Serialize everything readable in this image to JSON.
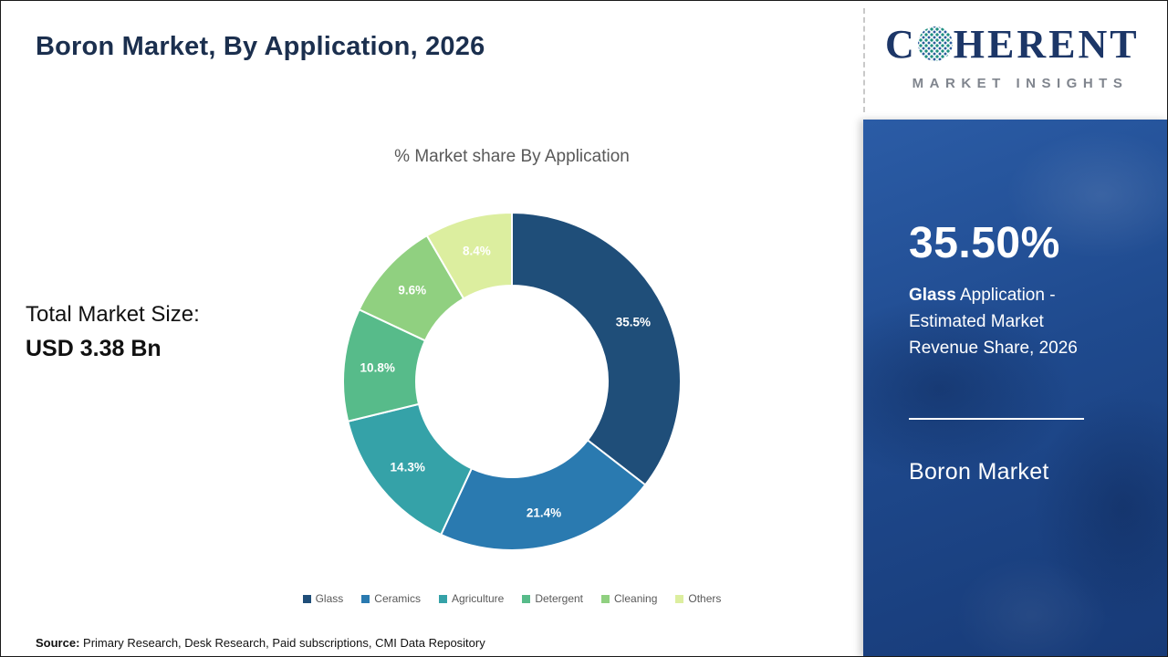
{
  "slide": {
    "title": "Boron Market, By Application, 2026",
    "total_label": "Total Market Size:",
    "total_value": "USD 3.38 Bn",
    "source_label": "Source:",
    "source_text": " Primary Research, Desk Research, Paid subscriptions, CMI Data Repository"
  },
  "logo": {
    "prefix": "C",
    "suffix": "HERENT",
    "subtitle": "MARKET INSIGHTS"
  },
  "chart_data": {
    "type": "pie",
    "donut": true,
    "title": "% Market share By Application",
    "categories": [
      "Glass",
      "Ceramics",
      "Agriculture",
      "Detergent",
      "Cleaning",
      "Others"
    ],
    "values": [
      35.5,
      21.4,
      14.3,
      10.8,
      9.6,
      8.4
    ],
    "labels": [
      "35.5%",
      "21.4%",
      "14.3%",
      "10.8%",
      "9.6%",
      "8.4%"
    ],
    "colors": [
      "#1f4e79",
      "#2a7ab0",
      "#35a2a8",
      "#57bb8a",
      "#90d080",
      "#dcee9f"
    ],
    "start_angle_deg": 0,
    "direction": "clockwise",
    "legend_position": "bottom"
  },
  "panel": {
    "highlight_value": "35.50%",
    "highlight_bold": "Glass",
    "highlight_rest": " Application - Estimated Market Revenue Share, 2026",
    "footer": "Boron Market"
  }
}
